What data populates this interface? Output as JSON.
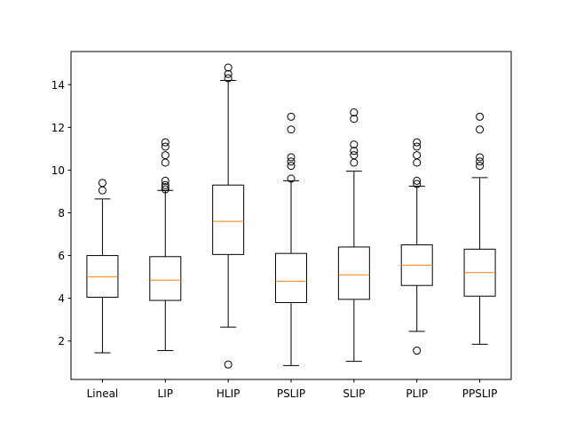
{
  "chart_data": {
    "type": "box",
    "title": "",
    "xlabel": "",
    "ylabel": "",
    "ylim": [
      0.2,
      15.55
    ],
    "yticks": [
      2,
      4,
      6,
      8,
      10,
      12,
      14
    ],
    "grid": false,
    "legend": "none",
    "colors": {
      "box": "#000000",
      "median": "#ff7f0e",
      "background": "#ffffff"
    },
    "categories": [
      "Lineal",
      "LIP",
      "HLIP",
      "PSLIP",
      "SLIP",
      "PLIP",
      "PPSLIP"
    ],
    "boxes": [
      {
        "category": "Lineal",
        "whisker_low": 1.45,
        "q1": 4.05,
        "median": 5.0,
        "q3": 6.0,
        "whisker_high": 8.65,
        "outliers": [
          9.05,
          9.4
        ]
      },
      {
        "category": "LIP",
        "whisker_low": 1.55,
        "q1": 3.9,
        "median": 4.85,
        "q3": 5.95,
        "whisker_high": 9.05,
        "outliers": [
          9.1,
          9.2,
          9.3,
          9.5,
          10.35,
          10.7,
          11.1,
          11.3
        ]
      },
      {
        "category": "HLIP",
        "whisker_low": 2.65,
        "q1": 6.05,
        "median": 7.6,
        "q3": 9.3,
        "whisker_high": 14.2,
        "outliers": [
          0.9,
          14.3,
          14.5,
          14.8
        ]
      },
      {
        "category": "PSLIP",
        "whisker_low": 0.85,
        "q1": 3.8,
        "median": 4.8,
        "q3": 6.1,
        "whisker_high": 9.5,
        "outliers": [
          9.6,
          10.2,
          10.4,
          10.6,
          11.9,
          12.5
        ]
      },
      {
        "category": "SLIP",
        "whisker_low": 1.05,
        "q1": 3.95,
        "median": 5.1,
        "q3": 6.4,
        "whisker_high": 9.95,
        "outliers": [
          10.35,
          10.7,
          10.9,
          11.2,
          12.4,
          12.7
        ]
      },
      {
        "category": "PLIP",
        "whisker_low": 2.45,
        "q1": 4.6,
        "median": 5.55,
        "q3": 6.5,
        "whisker_high": 9.25,
        "outliers": [
          1.55,
          9.35,
          9.5,
          10.35,
          10.7,
          11.1,
          11.3
        ]
      },
      {
        "category": "PPSLIP",
        "whisker_low": 1.85,
        "q1": 4.1,
        "median": 5.2,
        "q3": 6.3,
        "whisker_high": 9.65,
        "outliers": [
          10.2,
          10.4,
          10.6,
          11.9,
          12.5
        ]
      }
    ]
  }
}
